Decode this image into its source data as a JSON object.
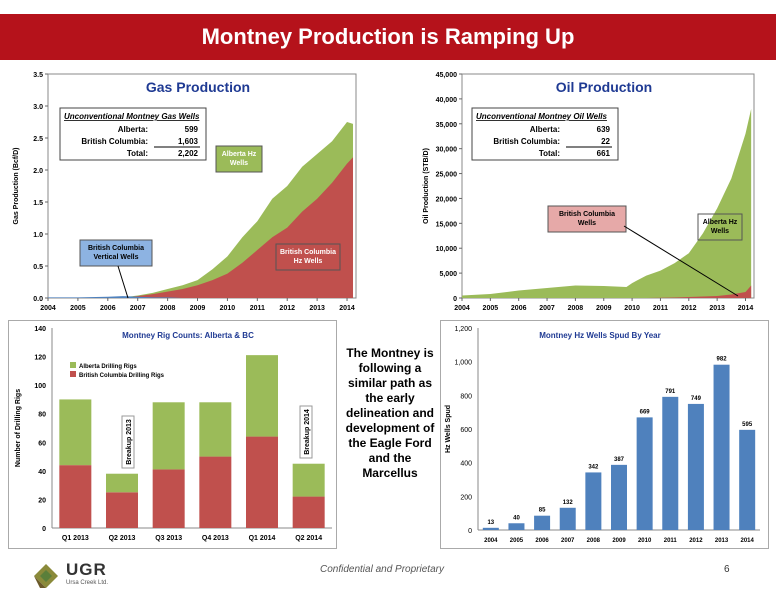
{
  "slide": {
    "title": "Montney Production is Ramping Up",
    "note": "The Montney is following a similar path as the early delineation and development of the Eagle Ford and the Marcellus",
    "footer": "Confidential and Proprietary",
    "page": "6",
    "logo": {
      "name": "UGR",
      "sub": "Ursa Creek Ltd."
    }
  },
  "chart_data": [
    {
      "type": "area",
      "title": "Gas Production",
      "ylabel": "Gas Production (Bcf/D)",
      "ylim": [
        0,
        3.5
      ],
      "yticks": [
        "0.0",
        "0.5",
        "1.0",
        "1.5",
        "2.0",
        "2.5",
        "3.0",
        "3.5"
      ],
      "xticks": [
        "2004",
        "2005",
        "2006",
        "2007",
        "2008",
        "2009",
        "2010",
        "2011",
        "2012",
        "2013",
        "2014"
      ],
      "x": [
        2004.0,
        2005.0,
        2006.0,
        2006.5,
        2007.0,
        2007.5,
        2008.0,
        2008.5,
        2009.0,
        2009.5,
        2010.0,
        2010.5,
        2011.0,
        2011.5,
        2012.0,
        2012.5,
        2013.0,
        2013.5,
        2014.0,
        2014.2
      ],
      "series": [
        {
          "name": "British Columbia Hz Wells",
          "color": "#c0504d",
          "values": [
            0.0,
            0.0,
            0.0,
            0.01,
            0.03,
            0.06,
            0.1,
            0.14,
            0.2,
            0.28,
            0.38,
            0.55,
            0.75,
            0.95,
            1.1,
            1.35,
            1.55,
            1.8,
            2.1,
            2.2
          ]
        },
        {
          "name": "Alberta Hz Wells",
          "color": "#9bbb59",
          "values": [
            0.0,
            0.0,
            0.0,
            0.01,
            0.04,
            0.08,
            0.14,
            0.2,
            0.28,
            0.45,
            0.65,
            0.95,
            1.2,
            1.55,
            1.75,
            2.05,
            2.25,
            2.45,
            2.75,
            2.72
          ]
        },
        {
          "name": "British Columbia Vertical Wells",
          "color": "#4f81bd",
          "values": [
            0.01,
            0.01,
            0.02,
            0.03,
            0.02,
            0.01,
            0.01,
            0.0,
            0.0,
            0.0,
            0.0,
            0.0,
            0.0,
            0.0,
            0.0,
            0.0,
            0.0,
            0.0,
            0.0,
            0.0
          ]
        }
      ],
      "table": {
        "heading": "Unconventional Montney Gas Wells",
        "rows": [
          {
            "label": "Alberta:",
            "value": "599"
          },
          {
            "label": "British Columbia:",
            "value": "1,603"
          },
          {
            "label": "Total:",
            "value": "2,202"
          }
        ]
      },
      "annotations": [
        "Alberta Hz Wells",
        "British Columbia Hz Wells",
        "British Columbia Vertical Wells"
      ]
    },
    {
      "type": "area",
      "title": "Oil Production",
      "ylabel": "Oil Production (STB/D)",
      "ylim": [
        0,
        45000
      ],
      "yticks": [
        "0",
        "5,000",
        "10,000",
        "15,000",
        "20,000",
        "25,000",
        "30,000",
        "35,000",
        "40,000",
        "45,000"
      ],
      "xticks": [
        "2004",
        "2005",
        "2006",
        "2007",
        "2008",
        "2009",
        "2010",
        "2011",
        "2012",
        "2013",
        "2014"
      ],
      "x": [
        2004.0,
        2005.0,
        2006.0,
        2007.0,
        2008.0,
        2009.0,
        2009.8,
        2010.0,
        2010.5,
        2011.0,
        2011.5,
        2012.0,
        2012.5,
        2013.0,
        2013.5,
        2014.0,
        2014.2
      ],
      "series": [
        {
          "name": "Alberta Hz Wells",
          "color": "#9bbb59",
          "values": [
            500,
            800,
            1500,
            2000,
            2500,
            2400,
            2200,
            3000,
            4500,
            5500,
            7000,
            9000,
            13000,
            18000,
            24000,
            33000,
            38000
          ]
        },
        {
          "name": "British Columbia Wells",
          "color": "#c0504d",
          "values": [
            0,
            0,
            0,
            0,
            0,
            0,
            0,
            0,
            0,
            50,
            100,
            200,
            300,
            400,
            700,
            1200,
            2500
          ]
        }
      ],
      "table": {
        "heading": "Unconventional Montney Oil Wells",
        "rows": [
          {
            "label": "Alberta:",
            "value": "639"
          },
          {
            "label": "British Columbia:",
            "value": "22"
          },
          {
            "label": "Total:",
            "value": "661"
          }
        ]
      },
      "annotations": [
        "British Columbia Wells",
        "Alberta Hz Wells"
      ]
    },
    {
      "type": "bar",
      "title": "Montney Rig Counts: Alberta & BC",
      "ylabel": "Number of Drilling Rigs",
      "ylim": [
        0,
        140
      ],
      "yticks": [
        "0",
        "20",
        "40",
        "60",
        "80",
        "100",
        "120",
        "140"
      ],
      "categories": [
        "Q1 2013",
        "Q2 2013",
        "Q3 2013",
        "Q4 2013",
        "Q1 2014",
        "Q2 2014"
      ],
      "series": [
        {
          "name": "British Columbia Drilling Rigs",
          "color": "#c0504d",
          "values": [
            44,
            25,
            41,
            50,
            64,
            22
          ]
        },
        {
          "name": "Alberta Drilling Rigs",
          "color": "#9bbb59",
          "values": [
            46,
            13,
            47,
            38,
            57,
            23
          ]
        }
      ],
      "annotations": [
        "Breakup 2013",
        "Breakup 2014"
      ]
    },
    {
      "type": "bar",
      "title": "Montney Hz Wells Spud By Year",
      "ylabel": "Hz Wells Spud",
      "ylim": [
        0,
        1200
      ],
      "yticks": [
        "0",
        "200",
        "400",
        "600",
        "800",
        "1,000",
        "1,200"
      ],
      "categories": [
        "2004",
        "2005",
        "2006",
        "2007",
        "2008",
        "2009",
        "2010",
        "2011",
        "2012",
        "2013",
        "2014"
      ],
      "values": [
        13,
        40,
        85,
        132,
        342,
        387,
        669,
        791,
        749,
        982,
        595
      ],
      "labels": [
        "13",
        "40",
        "85",
        "132",
        "342",
        "387",
        "669",
        "791",
        "749",
        "982",
        "595"
      ],
      "color": "#4f81bd"
    }
  ]
}
